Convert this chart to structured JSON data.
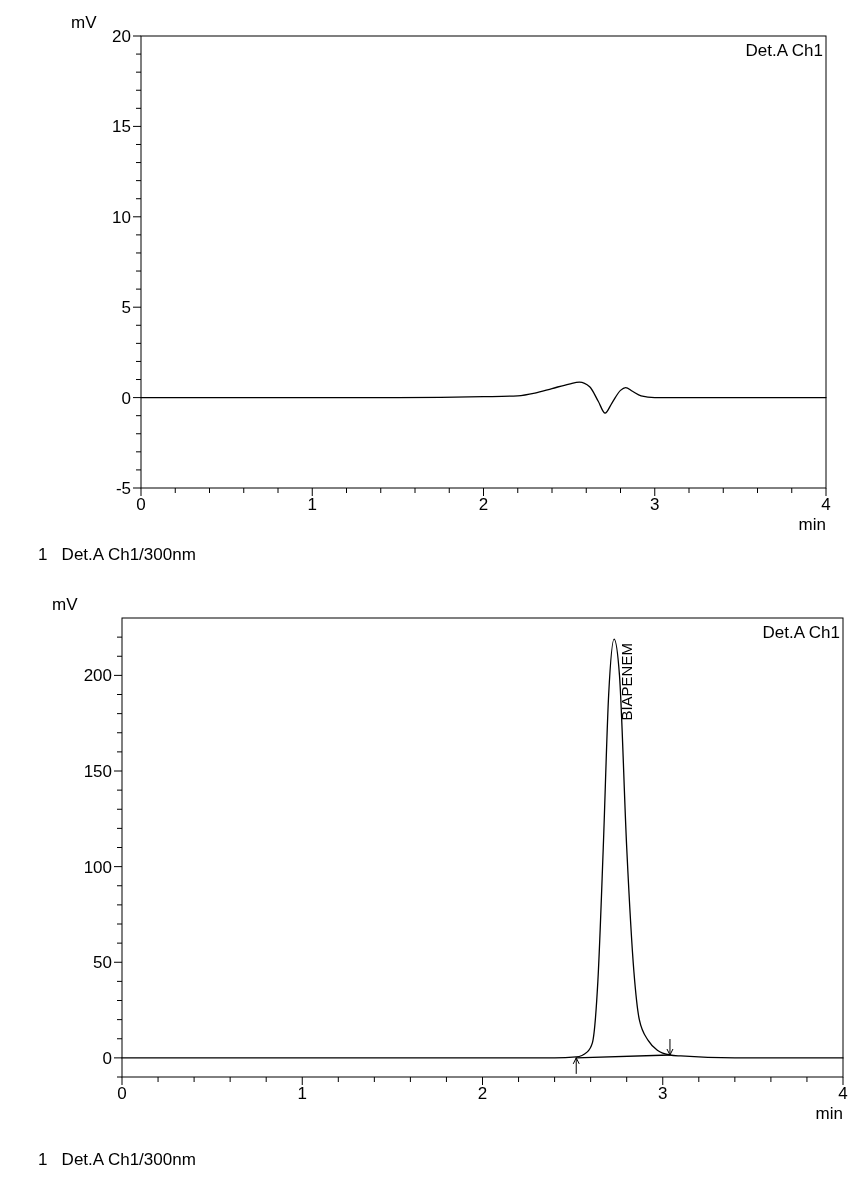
{
  "chart_data": [
    {
      "type": "line",
      "title": "Det.A Ch1",
      "xlabel": "min",
      "ylabel": "mV",
      "xlim": [
        0,
        4
      ],
      "ylim": [
        -5,
        20
      ],
      "xticks": [
        0,
        {
          "value": 0.2,
          "label": null
        },
        {
          "value": 0.4,
          "label": null
        },
        {
          "value": 0.6,
          "label": null
        },
        {
          "value": 0.8,
          "label": null
        },
        1,
        {
          "value": 1.2,
          "label": null
        },
        {
          "value": 1.4,
          "label": null
        },
        {
          "value": 1.6,
          "label": null
        },
        {
          "value": 1.8,
          "label": null
        },
        2,
        {
          "value": 2.2,
          "label": null
        },
        {
          "value": 2.4,
          "label": null
        },
        {
          "value": 2.6,
          "label": null
        },
        {
          "value": 2.8,
          "label": null
        },
        3,
        {
          "value": 3.2,
          "label": null
        },
        {
          "value": 3.4,
          "label": null
        },
        {
          "value": 3.6,
          "label": null
        },
        {
          "value": 3.8,
          "label": null
        },
        4
      ],
      "yticks": [
        -5,
        {
          "value": -4,
          "label": null
        },
        {
          "value": -3,
          "label": null
        },
        {
          "value": -2,
          "label": null
        },
        {
          "value": -1,
          "label": null
        },
        0,
        {
          "value": 1,
          "label": null
        },
        {
          "value": 2,
          "label": null
        },
        {
          "value": 3,
          "label": null
        },
        {
          "value": 4,
          "label": null
        },
        5,
        {
          "value": 6,
          "label": null
        },
        {
          "value": 7,
          "label": null
        },
        {
          "value": 8,
          "label": null
        },
        {
          "value": 9,
          "label": null
        },
        10,
        {
          "value": 11,
          "label": null
        },
        {
          "value": 12,
          "label": null
        },
        {
          "value": 13,
          "label": null
        },
        {
          "value": 14,
          "label": null
        },
        15,
        {
          "value": 16,
          "label": null
        },
        {
          "value": 17,
          "label": null
        },
        {
          "value": 18,
          "label": null
        },
        {
          "value": 19,
          "label": null
        },
        20
      ],
      "series": [
        {
          "color": "#000000",
          "x": [
            0,
            0.5,
            1,
            1.5,
            2,
            2.2,
            2.3,
            2.4,
            2.5,
            2.56,
            2.62,
            2.67,
            2.71,
            2.75,
            2.8,
            2.83,
            2.87,
            2.92,
            3,
            3.5,
            4
          ],
          "values": [
            0,
            0,
            0,
            0,
            0.05,
            0.1,
            0.25,
            0.5,
            0.75,
            0.86,
            0.6,
            -0.2,
            -0.86,
            -0.3,
            0.4,
            0.55,
            0.35,
            0.1,
            0,
            0,
            0
          ]
        }
      ],
      "annotations": [
        "1   Det.A Ch1/300nm"
      ]
    },
    {
      "type": "line",
      "title": "Det.A Ch1",
      "xlabel": "min",
      "ylabel": "mV",
      "xlim": [
        0,
        4
      ],
      "ylim": [
        -10,
        230
      ],
      "xticks": [
        0,
        {
          "value": 0.2,
          "label": null
        },
        {
          "value": 0.4,
          "label": null
        },
        {
          "value": 0.6,
          "label": null
        },
        {
          "value": 0.8,
          "label": null
        },
        1,
        {
          "value": 1.2,
          "label": null
        },
        {
          "value": 1.4,
          "label": null
        },
        {
          "value": 1.6,
          "label": null
        },
        {
          "value": 1.8,
          "label": null
        },
        2,
        {
          "value": 2.2,
          "label": null
        },
        {
          "value": 2.4,
          "label": null
        },
        {
          "value": 2.6,
          "label": null
        },
        {
          "value": 2.8,
          "label": null
        },
        3,
        {
          "value": 3.2,
          "label": null
        },
        {
          "value": 3.4,
          "label": null
        },
        {
          "value": 3.6,
          "label": null
        },
        {
          "value": 3.8,
          "label": null
        },
        4
      ],
      "yticks": [
        {
          "value": -10,
          "label": null
        },
        0,
        {
          "value": 10,
          "label": null
        },
        {
          "value": 20,
          "label": null
        },
        {
          "value": 30,
          "label": null
        },
        {
          "value": 40,
          "label": null
        },
        50,
        {
          "value": 60,
          "label": null
        },
        {
          "value": 70,
          "label": null
        },
        {
          "value": 80,
          "label": null
        },
        {
          "value": 90,
          "label": null
        },
        100,
        {
          "value": 110,
          "label": null
        },
        {
          "value": 120,
          "label": null
        },
        {
          "value": 130,
          "label": null
        },
        {
          "value": 140,
          "label": null
        },
        150,
        {
          "value": 160,
          "label": null
        },
        {
          "value": 170,
          "label": null
        },
        {
          "value": 180,
          "label": null
        },
        {
          "value": 190,
          "label": null
        },
        200,
        {
          "value": 210,
          "label": null
        },
        {
          "value": 220,
          "label": null
        }
      ],
      "series": [
        {
          "color": "#000000",
          "x": [
            0,
            1,
            2,
            2.4,
            2.52,
            2.58,
            2.61,
            2.64,
            2.67,
            2.7,
            2.73,
            2.76,
            2.8,
            2.84,
            2.87,
            2.92,
            2.97,
            3.04,
            3.1,
            3.4,
            4
          ],
          "values": [
            0,
            0,
            0,
            0,
            0.5,
            3,
            8,
            40,
            110,
            190,
            219,
            200,
            110,
            45,
            20,
            9,
            4,
            1.5,
            1,
            0,
            0
          ]
        },
        {
          "color": "#000000",
          "x": [
            2.52,
            3.04
          ],
          "values": [
            0,
            1.5
          ]
        }
      ],
      "annotations": [
        {
          "text": "BIAPENEM",
          "x": 2.73,
          "y": 219
        },
        "1   Det.A Ch1/300nm"
      ]
    }
  ]
}
